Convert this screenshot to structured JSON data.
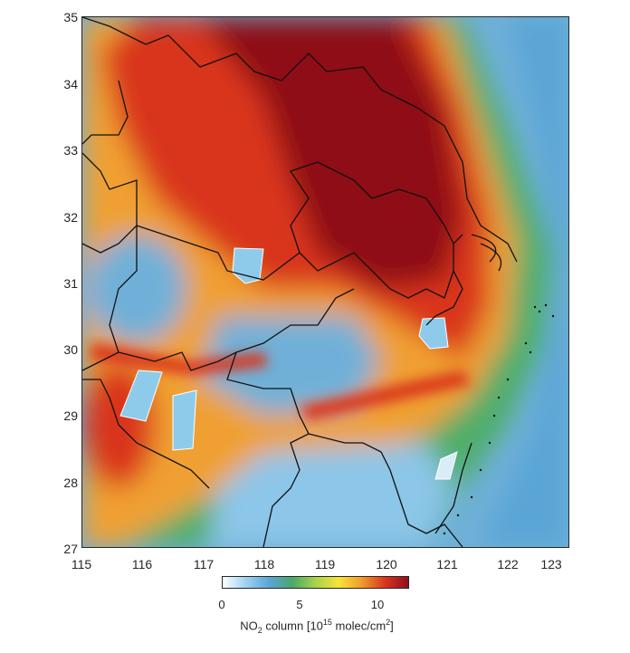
{
  "map": {
    "lon_ticks": [
      "115",
      "116",
      "117",
      "118",
      "119",
      "120",
      "121",
      "122",
      "123"
    ],
    "lat_ticks": [
      "35",
      "34",
      "33",
      "32",
      "31",
      "30",
      "29",
      "28",
      "27"
    ],
    "lon_range": [
      115,
      123
    ],
    "lat_range": [
      27,
      35
    ],
    "background_color": "#78b8dc"
  },
  "colorbar": {
    "ticks": [
      "0",
      "5",
      "10"
    ],
    "range": [
      0,
      12
    ],
    "title_prefix": "NO",
    "title_sub": "2",
    "title_mid": " column [10",
    "title_sup": "15",
    "title_mid2": " molec/cm",
    "title_sup2": "2",
    "title_suffix": "]",
    "colors": [
      "#ffffff",
      "#9fd2ef",
      "#5aa5d6",
      "#4aa86a",
      "#a9d24a",
      "#f6e43a",
      "#f29b2a",
      "#d9341f",
      "#8e1018"
    ]
  }
}
